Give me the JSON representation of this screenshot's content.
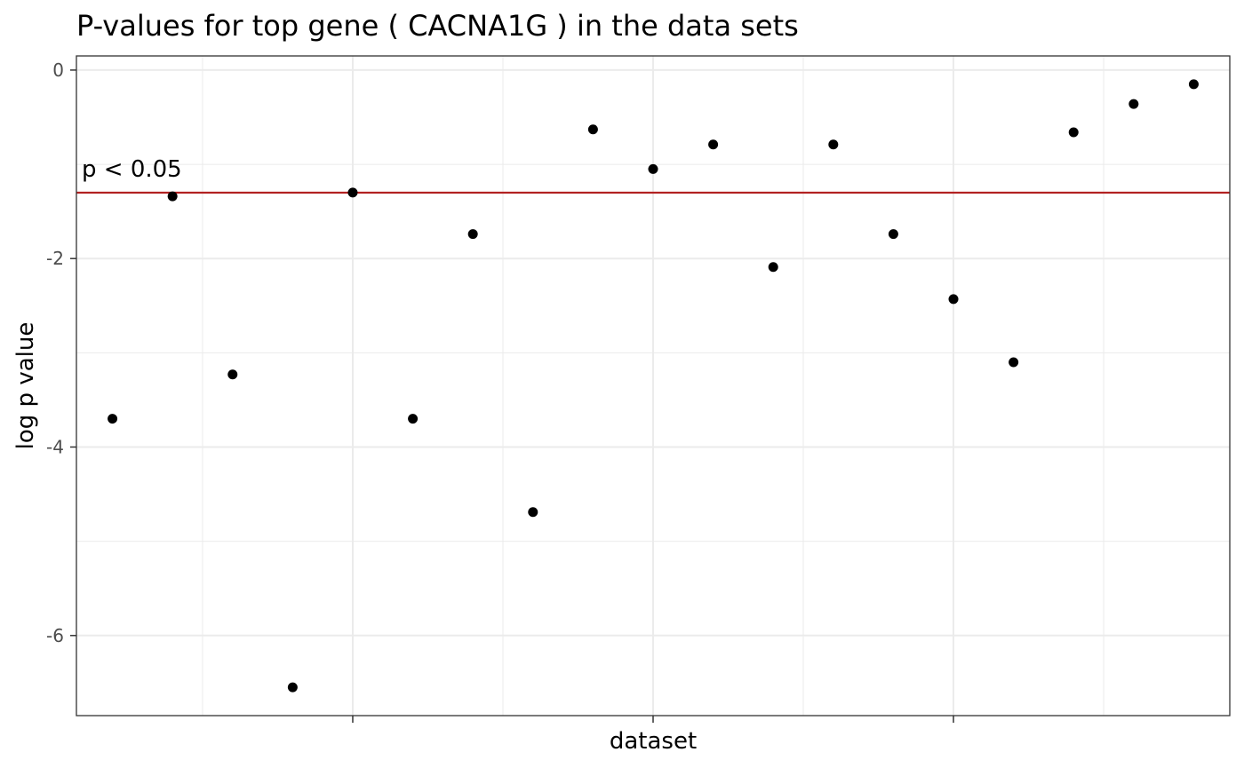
{
  "chart_data": {
    "type": "scatter",
    "title": "P-values for top gene ( CACNA1G ) in the data sets",
    "xlabel": "dataset",
    "ylabel": "log p value",
    "ylim": [
      -6.85,
      0.15
    ],
    "y_ticks": [
      0,
      -2,
      -4,
      -6
    ],
    "y_tick_labels": [
      "0",
      "-2",
      "-4",
      "-6"
    ],
    "x_ticks_shown": [
      5,
      10,
      15
    ],
    "grid": true,
    "points": [
      {
        "x": 1,
        "y": -3.7
      },
      {
        "x": 2,
        "y": -1.34
      },
      {
        "x": 3,
        "y": -3.23
      },
      {
        "x": 4,
        "y": -6.55
      },
      {
        "x": 5,
        "y": -1.3
      },
      {
        "x": 6,
        "y": -3.7
      },
      {
        "x": 7,
        "y": -1.74
      },
      {
        "x": 8,
        "y": -4.69
      },
      {
        "x": 9,
        "y": -0.63
      },
      {
        "x": 10,
        "y": -1.05
      },
      {
        "x": 11,
        "y": -0.79
      },
      {
        "x": 12,
        "y": -2.09
      },
      {
        "x": 13,
        "y": -0.79
      },
      {
        "x": 14,
        "y": -1.74
      },
      {
        "x": 15,
        "y": -2.43
      },
      {
        "x": 16,
        "y": -3.1
      },
      {
        "x": 17,
        "y": -0.66
      },
      {
        "x": 18,
        "y": -0.36
      },
      {
        "x": 19,
        "y": -0.15
      }
    ],
    "reference_line": {
      "y": -1.301,
      "label": "p < 0.05",
      "color": "#b22222"
    },
    "point_color": "#000000",
    "grid_color": "#ebebeb",
    "panel_border_color": "#333333"
  }
}
